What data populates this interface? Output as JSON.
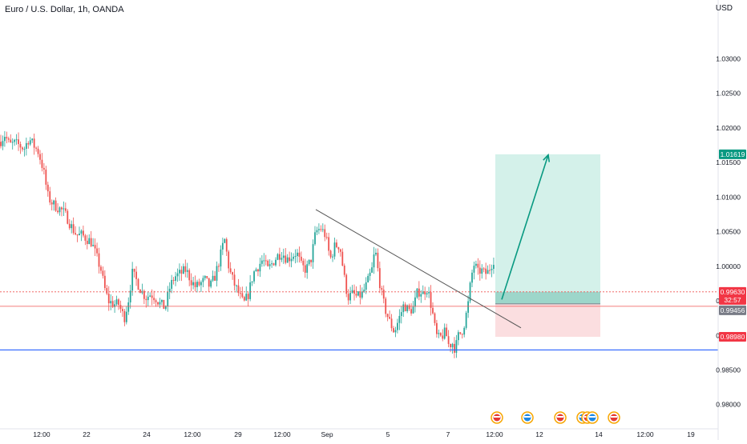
{
  "header": {
    "symbol_title": "Euro / U.S. Dollar, 1h, OANDA",
    "currency": "USD"
  },
  "colors": {
    "up": "#26a69a",
    "down": "#ef5350",
    "profit_zone": "#cdeee6",
    "loss_zone": "#fbdadd",
    "support_line": "#2962ff",
    "trendline": "#555555",
    "target_badge": "#089981",
    "stop_badge": "#f23645",
    "price_badge": "#f23645",
    "entry_badge": "#787b86"
  },
  "chart_data": {
    "type": "candlestick",
    "title": "Euro / U.S. Dollar, 1h, OANDA",
    "y_axis": {
      "ylim": [
        0.9765,
        1.0385
      ],
      "ticks": [
        "1.03000",
        "1.02500",
        "1.02000",
        "1.01500",
        "1.01000",
        "1.00500",
        "1.00000",
        "0.99500",
        "0.99000",
        "0.98500",
        "0.98000"
      ],
      "tick_values": [
        1.03,
        1.025,
        1.02,
        1.015,
        1.01,
        1.005,
        1.0,
        0.995,
        0.99,
        0.985,
        0.98
      ]
    },
    "x_axis": {
      "ticks": [
        "12:00",
        "22",
        "24",
        "12:00",
        "29",
        "12:00",
        "Sep",
        "5",
        "7",
        "12:00",
        "12",
        "14",
        "12:00",
        "19"
      ]
    },
    "price_path": [
      [
        0,
        1.018
      ],
      [
        6,
        1.019
      ],
      [
        12,
        1.0175
      ],
      [
        18,
        1.0178
      ],
      [
        24,
        1.0175
      ],
      [
        30,
        1.017
      ],
      [
        36,
        1.0185
      ],
      [
        42,
        1.0175
      ],
      [
        48,
        1.0165
      ],
      [
        54,
        1.014
      ],
      [
        60,
        1.01
      ],
      [
        66,
        1.009
      ],
      [
        72,
        1.0085
      ],
      [
        78,
        1.008
      ],
      [
        84,
        1.007
      ],
      [
        90,
        1.0055
      ],
      [
        96,
        1.0045
      ],
      [
        102,
        1.0045
      ],
      [
        108,
        1.004
      ],
      [
        114,
        1.0035
      ],
      [
        120,
        1.0015
      ],
      [
        126,
        0.9995
      ],
      [
        130,
        0.997
      ],
      [
        135,
        0.995
      ],
      [
        142,
        0.9945
      ],
      [
        148,
        0.9945
      ],
      [
        155,
        0.9925
      ],
      [
        160,
        0.995
      ],
      [
        165,
        0.999
      ],
      [
        170,
        0.998
      ],
      [
        176,
        0.9965
      ],
      [
        182,
        0.9955
      ],
      [
        188,
        0.996
      ],
      [
        194,
        0.9955
      ],
      [
        200,
        0.9945
      ],
      [
        206,
        0.994
      ],
      [
        212,
        0.997
      ],
      [
        218,
        0.9985
      ],
      [
        226,
        0.999
      ],
      [
        232,
        0.9995
      ],
      [
        238,
        0.998
      ],
      [
        244,
        0.997
      ],
      [
        250,
        0.9975
      ],
      [
        256,
        0.998
      ],
      [
        262,
        0.997
      ],
      [
        268,
        0.9985
      ],
      [
        274,
        1.001
      ],
      [
        280,
        1.004
      ],
      [
        286,
        0.9995
      ],
      [
        292,
        0.9975
      ],
      [
        298,
        0.996
      ],
      [
        304,
        0.9945
      ],
      [
        310,
        0.996
      ],
      [
        316,
        0.999
      ],
      [
        322,
        1.0
      ],
      [
        328,
        1.001
      ],
      [
        334,
        0.9995
      ],
      [
        340,
        1.0005
      ],
      [
        346,
        1.0015
      ],
      [
        352,
        1.002
      ],
      [
        358,
        1.001
      ],
      [
        364,
        1.0015
      ],
      [
        370,
        1.002
      ],
      [
        376,
        1.0
      ],
      [
        382,
        0.9995
      ],
      [
        388,
        1.001
      ],
      [
        394,
        1.005
      ],
      [
        400,
        1.0055
      ],
      [
        406,
        1.0045
      ],
      [
        412,
        1.001
      ],
      [
        418,
        1.003
      ],
      [
        424,
        1.003
      ],
      [
        430,
        0.998
      ],
      [
        434,
        0.9955
      ],
      [
        440,
        0.996
      ],
      [
        446,
        0.9955
      ],
      [
        452,
        0.996
      ],
      [
        458,
        0.9975
      ],
      [
        464,
        0.9995
      ],
      [
        468,
        1.0025
      ],
      [
        472,
        0.999
      ],
      [
        476,
        0.996
      ],
      [
        480,
        0.994
      ],
      [
        486,
        0.992
      ],
      [
        492,
        0.9905
      ],
      [
        498,
        0.9925
      ],
      [
        504,
        0.9945
      ],
      [
        510,
        0.9935
      ],
      [
        516,
        0.994
      ],
      [
        520,
        0.996
      ],
      [
        524,
        0.9965
      ],
      [
        528,
        0.996
      ],
      [
        532,
        0.997
      ],
      [
        536,
        0.9955
      ],
      [
        540,
        0.993
      ],
      [
        544,
        0.99
      ],
      [
        548,
        0.9895
      ],
      [
        552,
        0.99
      ],
      [
        556,
        0.9905
      ],
      [
        560,
        0.9885
      ],
      [
        564,
        0.989
      ],
      [
        568,
        0.988
      ],
      [
        572,
        0.99
      ],
      [
        576,
        0.9905
      ],
      [
        580,
        0.992
      ],
      [
        584,
        0.9945
      ],
      [
        588,
        0.9985
      ],
      [
        592,
        1.0005
      ],
      [
        596,
        0.999
      ],
      [
        600,
        0.9995
      ],
      [
        604,
        0.999
      ],
      [
        608,
        0.999
      ],
      [
        612,
        1.0
      ],
      [
        616,
        1.001
      ],
      [
        618,
        0.9965
      ]
    ],
    "support_level": 0.9879,
    "trendline": {
      "from": [
        394,
        1.0082
      ],
      "to": [
        650,
        0.9911
      ]
    },
    "position": {
      "type": "long",
      "x_start": 618,
      "x_end": 749,
      "entry": 0.99456,
      "target": 1.01619,
      "stop": 0.9898
    },
    "projection_arrow": {
      "from": [
        626,
        0.9952
      ],
      "to": [
        684,
        1.0161
      ]
    },
    "current_price": 0.9963,
    "badges": [
      {
        "label": "1.01619",
        "value": 1.01619,
        "role": "target"
      },
      {
        "label": "0.99630",
        "value": 0.9963,
        "role": "price",
        "sub": "32:57"
      },
      {
        "label": "0.99456",
        "value": 0.99456,
        "role": "entry"
      },
      {
        "label": "0.98980",
        "value": 0.9898,
        "role": "stop"
      }
    ],
    "event_markers_x": [
      620,
      658,
      699,
      727,
      733,
      739,
      766
    ]
  }
}
